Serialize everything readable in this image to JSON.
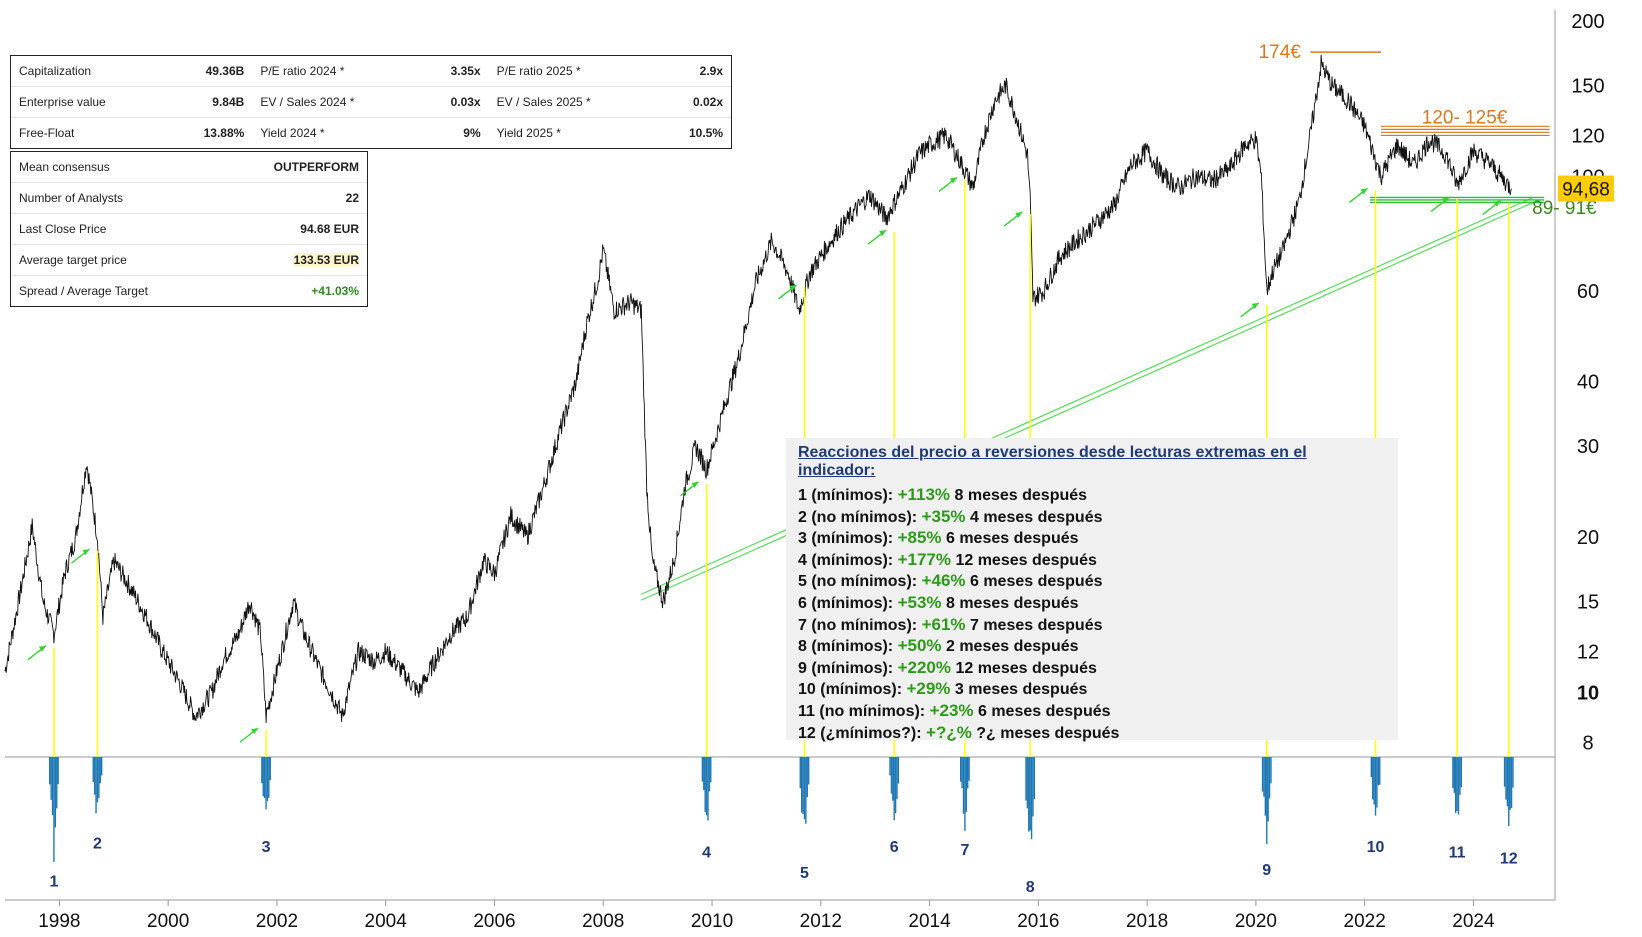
{
  "stats": [
    {
      "label": "Capitalization",
      "value": "49.36B",
      "label2": "P/E ratio 2024 *",
      "value2": "3.35x",
      "label3": "P/E ratio 2025 *",
      "value3": "2.9x"
    },
    {
      "label": "Enterprise value",
      "value": "9.84B",
      "label2": "EV / Sales 2024 *",
      "value2": "0.03x",
      "label3": "EV / Sales 2025 *",
      "value3": "0.02x"
    },
    {
      "label": "Free-Float",
      "value": "13.88%",
      "label2": "Yield 2024 *",
      "value2": "9%",
      "label3": "Yield 2025 *",
      "value3": "10.5%"
    }
  ],
  "consensus": [
    {
      "label": "Mean consensus",
      "value": "OUTPERFORM"
    },
    {
      "label": "Number of Analysts",
      "value": "22"
    },
    {
      "label": "Last Close Price",
      "value": "94.68 EUR"
    },
    {
      "label": "Average target price",
      "value": "133.53 EUR"
    },
    {
      "label": "Spread / Average Target",
      "value": "+41.03%"
    }
  ],
  "notes": {
    "title": "Reacciones del precio a reversiones desde lecturas extremas en el indicador:",
    "rows": [
      {
        "label": "1 (mínimos):",
        "gain": "+113%",
        "after": "8 meses después"
      },
      {
        "label": "2 (no mínimos):",
        "gain": "+35%",
        "after": "4 meses después"
      },
      {
        "label": "3 (mínimos):",
        "gain": "+85%",
        "after": "6 meses después"
      },
      {
        "label": "4 (mínimos):",
        "gain": "+177%",
        "after": "12 meses después"
      },
      {
        "label": "5 (no mínimos):",
        "gain": "+46%",
        "after": "6 meses después"
      },
      {
        "label": "6 (mínimos):",
        "gain": "+53%",
        "after": "8 meses después"
      },
      {
        "label": "7 (no mínimos):",
        "gain": "+61%",
        "after": "7 meses después"
      },
      {
        "label": "8 (mínimos):",
        "gain": "+50%",
        "after": "2 meses después"
      },
      {
        "label": "9 (mínimos):",
        "gain": "+220%",
        "after": "12 meses después"
      },
      {
        "label": "10 (mínimos):",
        "gain": "+29%",
        "after": "3 meses después"
      },
      {
        "label": "11 (no mínimos):",
        "gain": "+23%",
        "after": "6 meses después"
      },
      {
        "label": "12 (¿mínimos?):",
        "gain": "+?¿%",
        "after": "?¿ meses después"
      }
    ]
  },
  "chart_data": {
    "type": "line",
    "title": "",
    "xlabel": "",
    "ylabel": "",
    "y_scale": "log",
    "ylim": [
      7.5,
      210
    ],
    "xlim": [
      1997.0,
      2025.5
    ],
    "x_ticks": [
      "1998",
      "2000",
      "2002",
      "2004",
      "2006",
      "2008",
      "2010",
      "2012",
      "2014",
      "2016",
      "2018",
      "2020",
      "2022",
      "2024"
    ],
    "y_ticks": [
      8,
      10,
      12,
      15,
      20,
      30,
      40,
      60,
      100,
      120,
      150,
      200
    ],
    "last_price_label": "94,68",
    "series": [
      {
        "values": [
          {
            "x": 1997.0,
            "y": 11
          },
          {
            "x": 1997.3,
            "y": 16
          },
          {
            "x": 1997.5,
            "y": 21
          },
          {
            "x": 1997.7,
            "y": 15
          },
          {
            "x": 1997.9,
            "y": 13
          },
          {
            "x": 1998.1,
            "y": 17
          },
          {
            "x": 1998.3,
            "y": 20
          },
          {
            "x": 1998.5,
            "y": 28
          },
          {
            "x": 1998.7,
            "y": 20
          },
          {
            "x": 1998.8,
            "y": 14
          },
          {
            "x": 1999.0,
            "y": 18
          },
          {
            "x": 1999.3,
            "y": 16
          },
          {
            "x": 1999.6,
            "y": 14
          },
          {
            "x": 1999.9,
            "y": 12
          },
          {
            "x": 2000.2,
            "y": 10.5
          },
          {
            "x": 2000.5,
            "y": 9
          },
          {
            "x": 2000.8,
            "y": 10
          },
          {
            "x": 2001.0,
            "y": 11.5
          },
          {
            "x": 2001.3,
            "y": 13
          },
          {
            "x": 2001.5,
            "y": 15
          },
          {
            "x": 2001.7,
            "y": 13
          },
          {
            "x": 2001.8,
            "y": 9
          },
          {
            "x": 2002.0,
            "y": 11
          },
          {
            "x": 2002.3,
            "y": 15
          },
          {
            "x": 2002.5,
            "y": 13
          },
          {
            "x": 2002.8,
            "y": 11
          },
          {
            "x": 2003.0,
            "y": 10
          },
          {
            "x": 2003.2,
            "y": 9
          },
          {
            "x": 2003.5,
            "y": 12
          },
          {
            "x": 2003.8,
            "y": 11.5
          },
          {
            "x": 2004.0,
            "y": 12
          },
          {
            "x": 2004.3,
            "y": 11
          },
          {
            "x": 2004.6,
            "y": 10
          },
          {
            "x": 2004.9,
            "y": 11.5
          },
          {
            "x": 2005.2,
            "y": 13
          },
          {
            "x": 2005.5,
            "y": 14
          },
          {
            "x": 2005.8,
            "y": 18
          },
          {
            "x": 2006.0,
            "y": 17
          },
          {
            "x": 2006.3,
            "y": 22
          },
          {
            "x": 2006.6,
            "y": 20
          },
          {
            "x": 2006.9,
            "y": 25
          },
          {
            "x": 2007.2,
            "y": 32
          },
          {
            "x": 2007.5,
            "y": 40
          },
          {
            "x": 2007.7,
            "y": 52
          },
          {
            "x": 2007.9,
            "y": 63
          },
          {
            "x": 2008.0,
            "y": 72
          },
          {
            "x": 2008.2,
            "y": 55
          },
          {
            "x": 2008.5,
            "y": 57
          },
          {
            "x": 2008.7,
            "y": 55
          },
          {
            "x": 2008.8,
            "y": 25
          },
          {
            "x": 2008.9,
            "y": 18
          },
          {
            "x": 2009.1,
            "y": 15
          },
          {
            "x": 2009.3,
            "y": 18
          },
          {
            "x": 2009.5,
            "y": 25
          },
          {
            "x": 2009.7,
            "y": 30
          },
          {
            "x": 2009.9,
            "y": 27
          },
          {
            "x": 2010.2,
            "y": 35
          },
          {
            "x": 2010.5,
            "y": 45
          },
          {
            "x": 2010.8,
            "y": 62
          },
          {
            "x": 2011.1,
            "y": 75
          },
          {
            "x": 2011.4,
            "y": 65
          },
          {
            "x": 2011.6,
            "y": 55
          },
          {
            "x": 2011.8,
            "y": 65
          },
          {
            "x": 2012.0,
            "y": 70
          },
          {
            "x": 2012.3,
            "y": 78
          },
          {
            "x": 2012.6,
            "y": 85
          },
          {
            "x": 2012.9,
            "y": 92
          },
          {
            "x": 2013.2,
            "y": 83
          },
          {
            "x": 2013.5,
            "y": 95
          },
          {
            "x": 2013.8,
            "y": 110
          },
          {
            "x": 2014.0,
            "y": 115
          },
          {
            "x": 2014.3,
            "y": 120
          },
          {
            "x": 2014.6,
            "y": 105
          },
          {
            "x": 2014.8,
            "y": 95
          },
          {
            "x": 2015.0,
            "y": 120
          },
          {
            "x": 2015.2,
            "y": 140
          },
          {
            "x": 2015.4,
            "y": 150
          },
          {
            "x": 2015.6,
            "y": 130
          },
          {
            "x": 2015.8,
            "y": 110
          },
          {
            "x": 2015.85,
            "y": 90
          },
          {
            "x": 2015.9,
            "y": 58
          },
          {
            "x": 2016.1,
            "y": 60
          },
          {
            "x": 2016.4,
            "y": 70
          },
          {
            "x": 2016.7,
            "y": 75
          },
          {
            "x": 2017.0,
            "y": 80
          },
          {
            "x": 2017.4,
            "y": 88
          },
          {
            "x": 2017.7,
            "y": 105
          },
          {
            "x": 2018.0,
            "y": 112
          },
          {
            "x": 2018.3,
            "y": 100
          },
          {
            "x": 2018.6,
            "y": 95
          },
          {
            "x": 2018.9,
            "y": 100
          },
          {
            "x": 2019.2,
            "y": 98
          },
          {
            "x": 2019.5,
            "y": 103
          },
          {
            "x": 2019.8,
            "y": 115
          },
          {
            "x": 2020.0,
            "y": 118
          },
          {
            "x": 2020.1,
            "y": 100
          },
          {
            "x": 2020.2,
            "y": 60
          },
          {
            "x": 2020.3,
            "y": 65
          },
          {
            "x": 2020.5,
            "y": 72
          },
          {
            "x": 2020.8,
            "y": 90
          },
          {
            "x": 2021.0,
            "y": 120
          },
          {
            "x": 2021.2,
            "y": 165
          },
          {
            "x": 2021.4,
            "y": 150
          },
          {
            "x": 2021.7,
            "y": 140
          },
          {
            "x": 2022.0,
            "y": 125
          },
          {
            "x": 2022.3,
            "y": 100
          },
          {
            "x": 2022.6,
            "y": 115
          },
          {
            "x": 2022.9,
            "y": 105
          },
          {
            "x": 2023.2,
            "y": 118
          },
          {
            "x": 2023.5,
            "y": 110
          },
          {
            "x": 2023.7,
            "y": 96
          },
          {
            "x": 2024.0,
            "y": 112
          },
          {
            "x": 2024.3,
            "y": 106
          },
          {
            "x": 2024.5,
            "y": 100
          },
          {
            "x": 2024.7,
            "y": 94.68
          }
        ]
      }
    ],
    "annotations": [
      {
        "text": "174€",
        "y": 174,
        "color": "#d97a1e"
      },
      {
        "text": "120- 125€",
        "y_range": [
          120,
          125
        ],
        "color": "#d97a1e"
      },
      {
        "text": "89- 91€",
        "y_range": [
          89,
          91
        ],
        "color": "#3a8a1a"
      }
    ],
    "signals": [
      {
        "label": "1",
        "x": 1997.9,
        "depth": 0.95
      },
      {
        "label": "2",
        "x": 1998.7,
        "depth": 0.62
      },
      {
        "label": "3",
        "x": 2001.8,
        "depth": 0.65
      },
      {
        "label": "4",
        "x": 2009.9,
        "depth": 0.7
      },
      {
        "label": "5",
        "x": 2011.7,
        "depth": 0.88
      },
      {
        "label": "6",
        "x": 2013.35,
        "depth": 0.65
      },
      {
        "label": "7",
        "x": 2014.65,
        "depth": 0.68
      },
      {
        "label": "8",
        "x": 2015.85,
        "depth": 1.0
      },
      {
        "label": "9",
        "x": 2020.2,
        "depth": 0.85
      },
      {
        "label": "10",
        "x": 2022.2,
        "depth": 0.65
      },
      {
        "label": "11",
        "x": 2023.7,
        "depth": 0.7
      },
      {
        "label": "12",
        "x": 2024.65,
        "depth": 0.75
      }
    ],
    "colors": {
      "price": "#111111",
      "signal": "#1f78b4",
      "vline": "#ffff00",
      "support": "#55dd55",
      "resistance": "#d97a1e",
      "last_price_bg": "#ffcc00"
    }
  }
}
